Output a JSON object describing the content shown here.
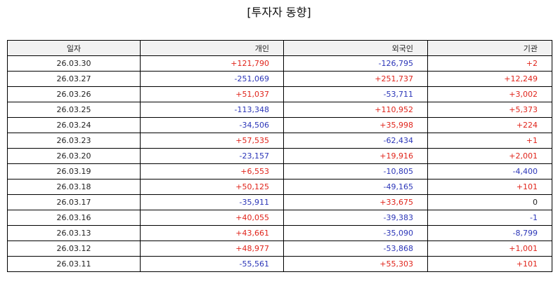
{
  "title": "[투자자 동향]",
  "colors": {
    "positive": "#e0241b",
    "negative": "#2b35b8",
    "neutral": "#222222",
    "header_bg": "#f2f2f2"
  },
  "table": {
    "headers": [
      "일자",
      "개인",
      "외국인",
      "기관"
    ],
    "rows": [
      {
        "date": "26.03.30",
        "individual": "+121,790",
        "foreign": "-126,795",
        "institution": "+2"
      },
      {
        "date": "26.03.27",
        "individual": "-251,069",
        "foreign": "+251,737",
        "institution": "+12,249"
      },
      {
        "date": "26.03.26",
        "individual": "+51,037",
        "foreign": "-53,711",
        "institution": "+3,002"
      },
      {
        "date": "26.03.25",
        "individual": "-113,348",
        "foreign": "+110,952",
        "institution": "+5,373"
      },
      {
        "date": "26.03.24",
        "individual": "-34,506",
        "foreign": "+35,998",
        "institution": "+224"
      },
      {
        "date": "26.03.23",
        "individual": "+57,535",
        "foreign": "-62,434",
        "institution": "+1"
      },
      {
        "date": "26.03.20",
        "individual": "-23,157",
        "foreign": "+19,916",
        "institution": "+2,001"
      },
      {
        "date": "26.03.19",
        "individual": "+6,553",
        "foreign": "-10,805",
        "institution": "-4,400"
      },
      {
        "date": "26.03.18",
        "individual": "+50,125",
        "foreign": "-49,165",
        "institution": "+101"
      },
      {
        "date": "26.03.17",
        "individual": "-35,911",
        "foreign": "+33,675",
        "institution": "0"
      },
      {
        "date": "26.03.16",
        "individual": "+40,055",
        "foreign": "-39,383",
        "institution": "-1"
      },
      {
        "date": "26.03.13",
        "individual": "+43,661",
        "foreign": "-35,090",
        "institution": "-8,799"
      },
      {
        "date": "26.03.12",
        "individual": "+48,977",
        "foreign": "-53,868",
        "institution": "+1,001"
      },
      {
        "date": "26.03.11",
        "individual": "-55,561",
        "foreign": "+55,303",
        "institution": "+101"
      }
    ]
  }
}
